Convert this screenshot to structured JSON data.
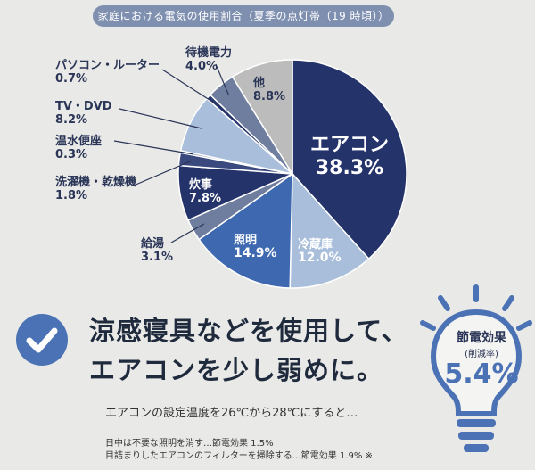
{
  "chart_data": {
    "type": "pie",
    "title": "家庭における電気の使用割合（夏季の点灯帯（19 時頃））",
    "slices": [
      {
        "name": "エアコン",
        "value": 38.3,
        "label": "38.3%",
        "color": "#25336b"
      },
      {
        "name": "冷蔵庫",
        "value": 12.0,
        "label": "12.0%",
        "color": "#a8bedb"
      },
      {
        "name": "照明",
        "value": 14.9,
        "label": "14.9%",
        "color": "#3e68b0"
      },
      {
        "name": "給湯",
        "value": 3.1,
        "label": "3.1%",
        "color": "#6f7d9e"
      },
      {
        "name": "炊事",
        "value": 7.8,
        "label": "7.8%",
        "color": "#25336b"
      },
      {
        "name": "洗濯機・乾燥機",
        "value": 1.8,
        "label": "1.8%",
        "color": "#3a4a7e"
      },
      {
        "name": "温水便座",
        "value": 0.3,
        "label": "0.3%",
        "color": "#6f7d9e"
      },
      {
        "name": "TV・DVD",
        "value": 8.2,
        "label": "8.2%",
        "color": "#a8bedb"
      },
      {
        "name": "パソコン・ルーター",
        "value": 0.7,
        "label": "0.7%",
        "color": "#25336b"
      },
      {
        "name": "待機電力",
        "value": 4.0,
        "label": "4.0%",
        "color": "#6f7d9e"
      },
      {
        "name": "他",
        "value": 8.8,
        "label": "8.8%",
        "color": "#bcbcbc"
      }
    ]
  },
  "headline": {
    "line1": "涼感寝具などを使用して、",
    "line2": "エアコンを少し弱めに。"
  },
  "subtext": "エアコンの設定温度を26℃から28℃にすると…",
  "notes": [
    "日中は不要な照明を消す…節電効果 1.5%",
    "目詰まりしたエアコンのフィルターを掃除する…節電効果 1.9% ※"
  ],
  "bulb": {
    "title": "節電効果",
    "subtitle": "(削減率)",
    "value": "5.4%"
  }
}
